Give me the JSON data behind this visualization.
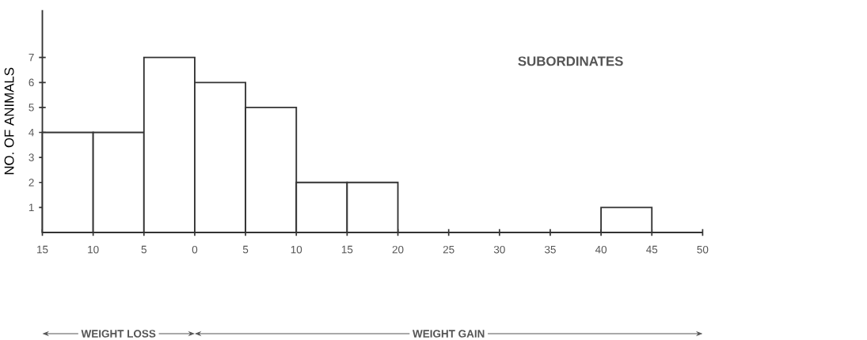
{
  "chart_data": {
    "type": "histogram",
    "title": "SUBORDINATES",
    "ylabel": "NO. OF ANIMALS",
    "bins": [
      -15,
      -10,
      -5,
      0,
      5,
      10,
      15,
      20,
      25,
      30,
      35,
      40,
      45
    ],
    "values": [
      4,
      4,
      7,
      6,
      5,
      2,
      2,
      0,
      0,
      0,
      0,
      1
    ],
    "color": "#333333",
    "xlim": [
      -15,
      50
    ],
    "ylim": [
      0,
      8.9
    ],
    "xticks": [
      {
        "value": -15,
        "label": "15"
      },
      {
        "value": -10,
        "label": "10"
      },
      {
        "value": -5,
        "label": "5"
      },
      0,
      5,
      10,
      15,
      20,
      25,
      30,
      35,
      40,
      45,
      50
    ],
    "yticks": [
      1,
      2,
      3,
      4,
      5,
      6,
      7
    ],
    "annotations": [
      "WEIGHT  LOSS",
      "WEIGHT  GAIN"
    ],
    "grid": false
  }
}
